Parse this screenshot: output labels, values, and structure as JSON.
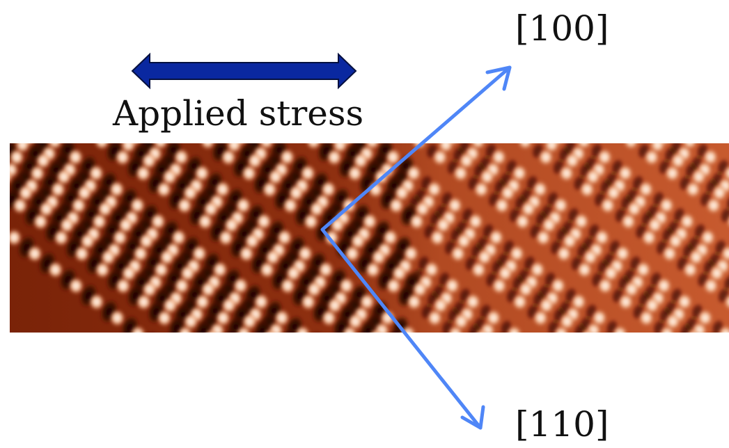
{
  "figure": {
    "stress_label": "Applied stress",
    "direction_100": "[100]",
    "direction_110": "[110]"
  },
  "colors": {
    "stress_arrow_fill": "#0a28a0",
    "stress_arrow_stroke": "#05103f",
    "direction_arrow": "#4f86f7",
    "image_dark": "#1a0400",
    "image_mid": "#c4532a",
    "image_light": "#fff3ea"
  },
  "icons": {
    "stress_arrow": "double-headed-arrow",
    "direction_arrows": "single-headed-arrow"
  }
}
